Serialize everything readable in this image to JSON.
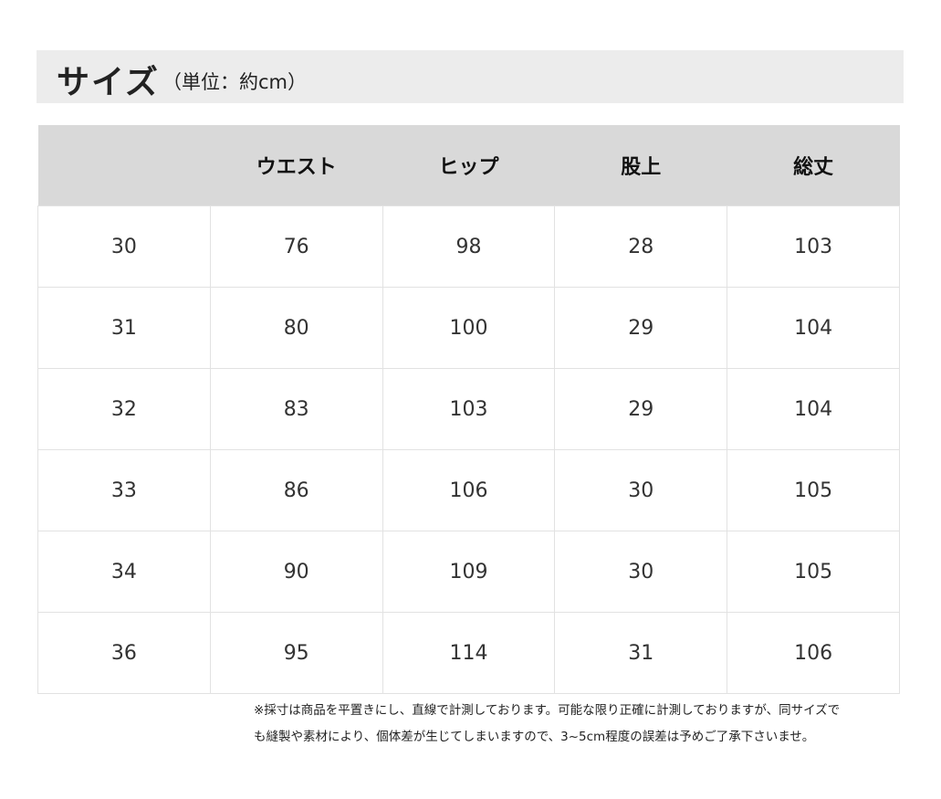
{
  "title": "サイズ",
  "unit": "（単位：約cm）",
  "table": {
    "headers": [
      "",
      "ウエスト",
      "ヒップ",
      "股上",
      "総丈"
    ],
    "rows": [
      [
        "30",
        "76",
        "98",
        "28",
        "103"
      ],
      [
        "31",
        "80",
        "100",
        "29",
        "104"
      ],
      [
        "32",
        "83",
        "103",
        "29",
        "104"
      ],
      [
        "33",
        "86",
        "106",
        "30",
        "105"
      ],
      [
        "34",
        "90",
        "109",
        "30",
        "105"
      ],
      [
        "36",
        "95",
        "114",
        "31",
        "106"
      ]
    ]
  },
  "note": {
    "line1": "※採寸は商品を平置きにし、直線で計測しております。可能な限り正確に計測しておりますが、同サイズで",
    "line2": "も縫製や素材により、個体差が生じてしまいますので、3~5cm程度の誤差は予めご了承下さいませ。"
  }
}
